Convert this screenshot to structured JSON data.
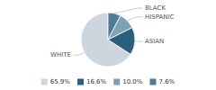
{
  "chart_data": {
    "type": "pie",
    "categories": [
      "WHITE",
      "ASIAN",
      "HISPANIC",
      "BLACK"
    ],
    "values": [
      65.9,
      16.6,
      10.0,
      7.6
    ],
    "value_labels": [
      "65.9%",
      "16.6%",
      "10.0%",
      "7.6%"
    ],
    "colors": [
      "#cdd5df",
      "#2b5f7e",
      "#7fa0b5",
      "#4d7d96"
    ],
    "legend": "bottom"
  }
}
